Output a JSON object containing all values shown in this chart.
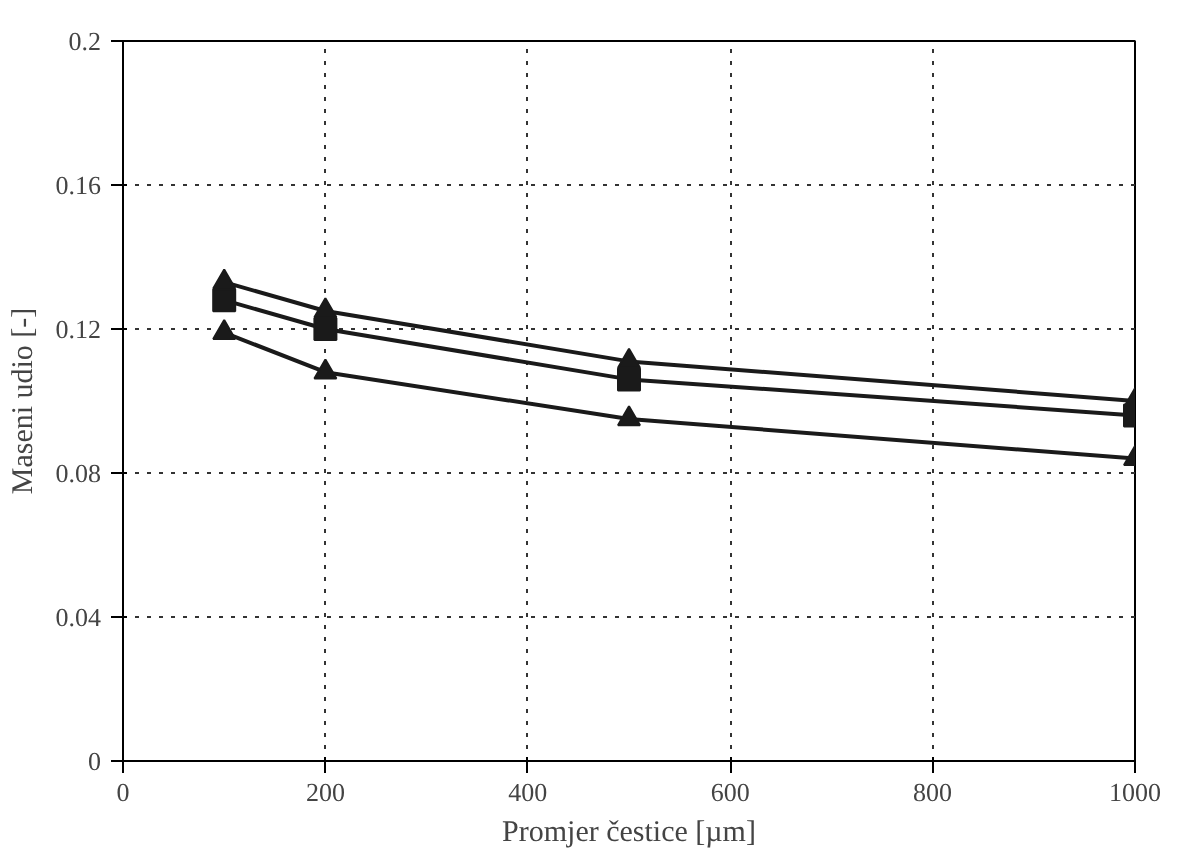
{
  "chart_data": {
    "type": "line",
    "xlabel": "Promjer čestice [µm]",
    "ylabel": "Maseni udio [-]",
    "x": [
      100,
      200,
      500,
      1000
    ],
    "series": [
      {
        "color": "#1a1a1a",
        "marker": "triangle",
        "values": [
          0.133,
          0.125,
          0.111,
          0.1
        ]
      },
      {
        "color": "#1a1a1a",
        "marker": "square",
        "values": [
          0.128,
          0.12,
          0.106,
          0.096
        ]
      },
      {
        "color": "#1a1a1a",
        "marker": "triangle",
        "values": [
          0.119,
          0.108,
          0.095,
          0.084
        ]
      }
    ],
    "xlim": [
      0,
      1000
    ],
    "ylim": [
      0,
      0.2
    ],
    "xticks": [
      0,
      200,
      400,
      600,
      800,
      1000
    ],
    "yticks": [
      0,
      0.04,
      0.08,
      0.12,
      0.16,
      0.2
    ],
    "grid": true,
    "line_style": "solid"
  }
}
